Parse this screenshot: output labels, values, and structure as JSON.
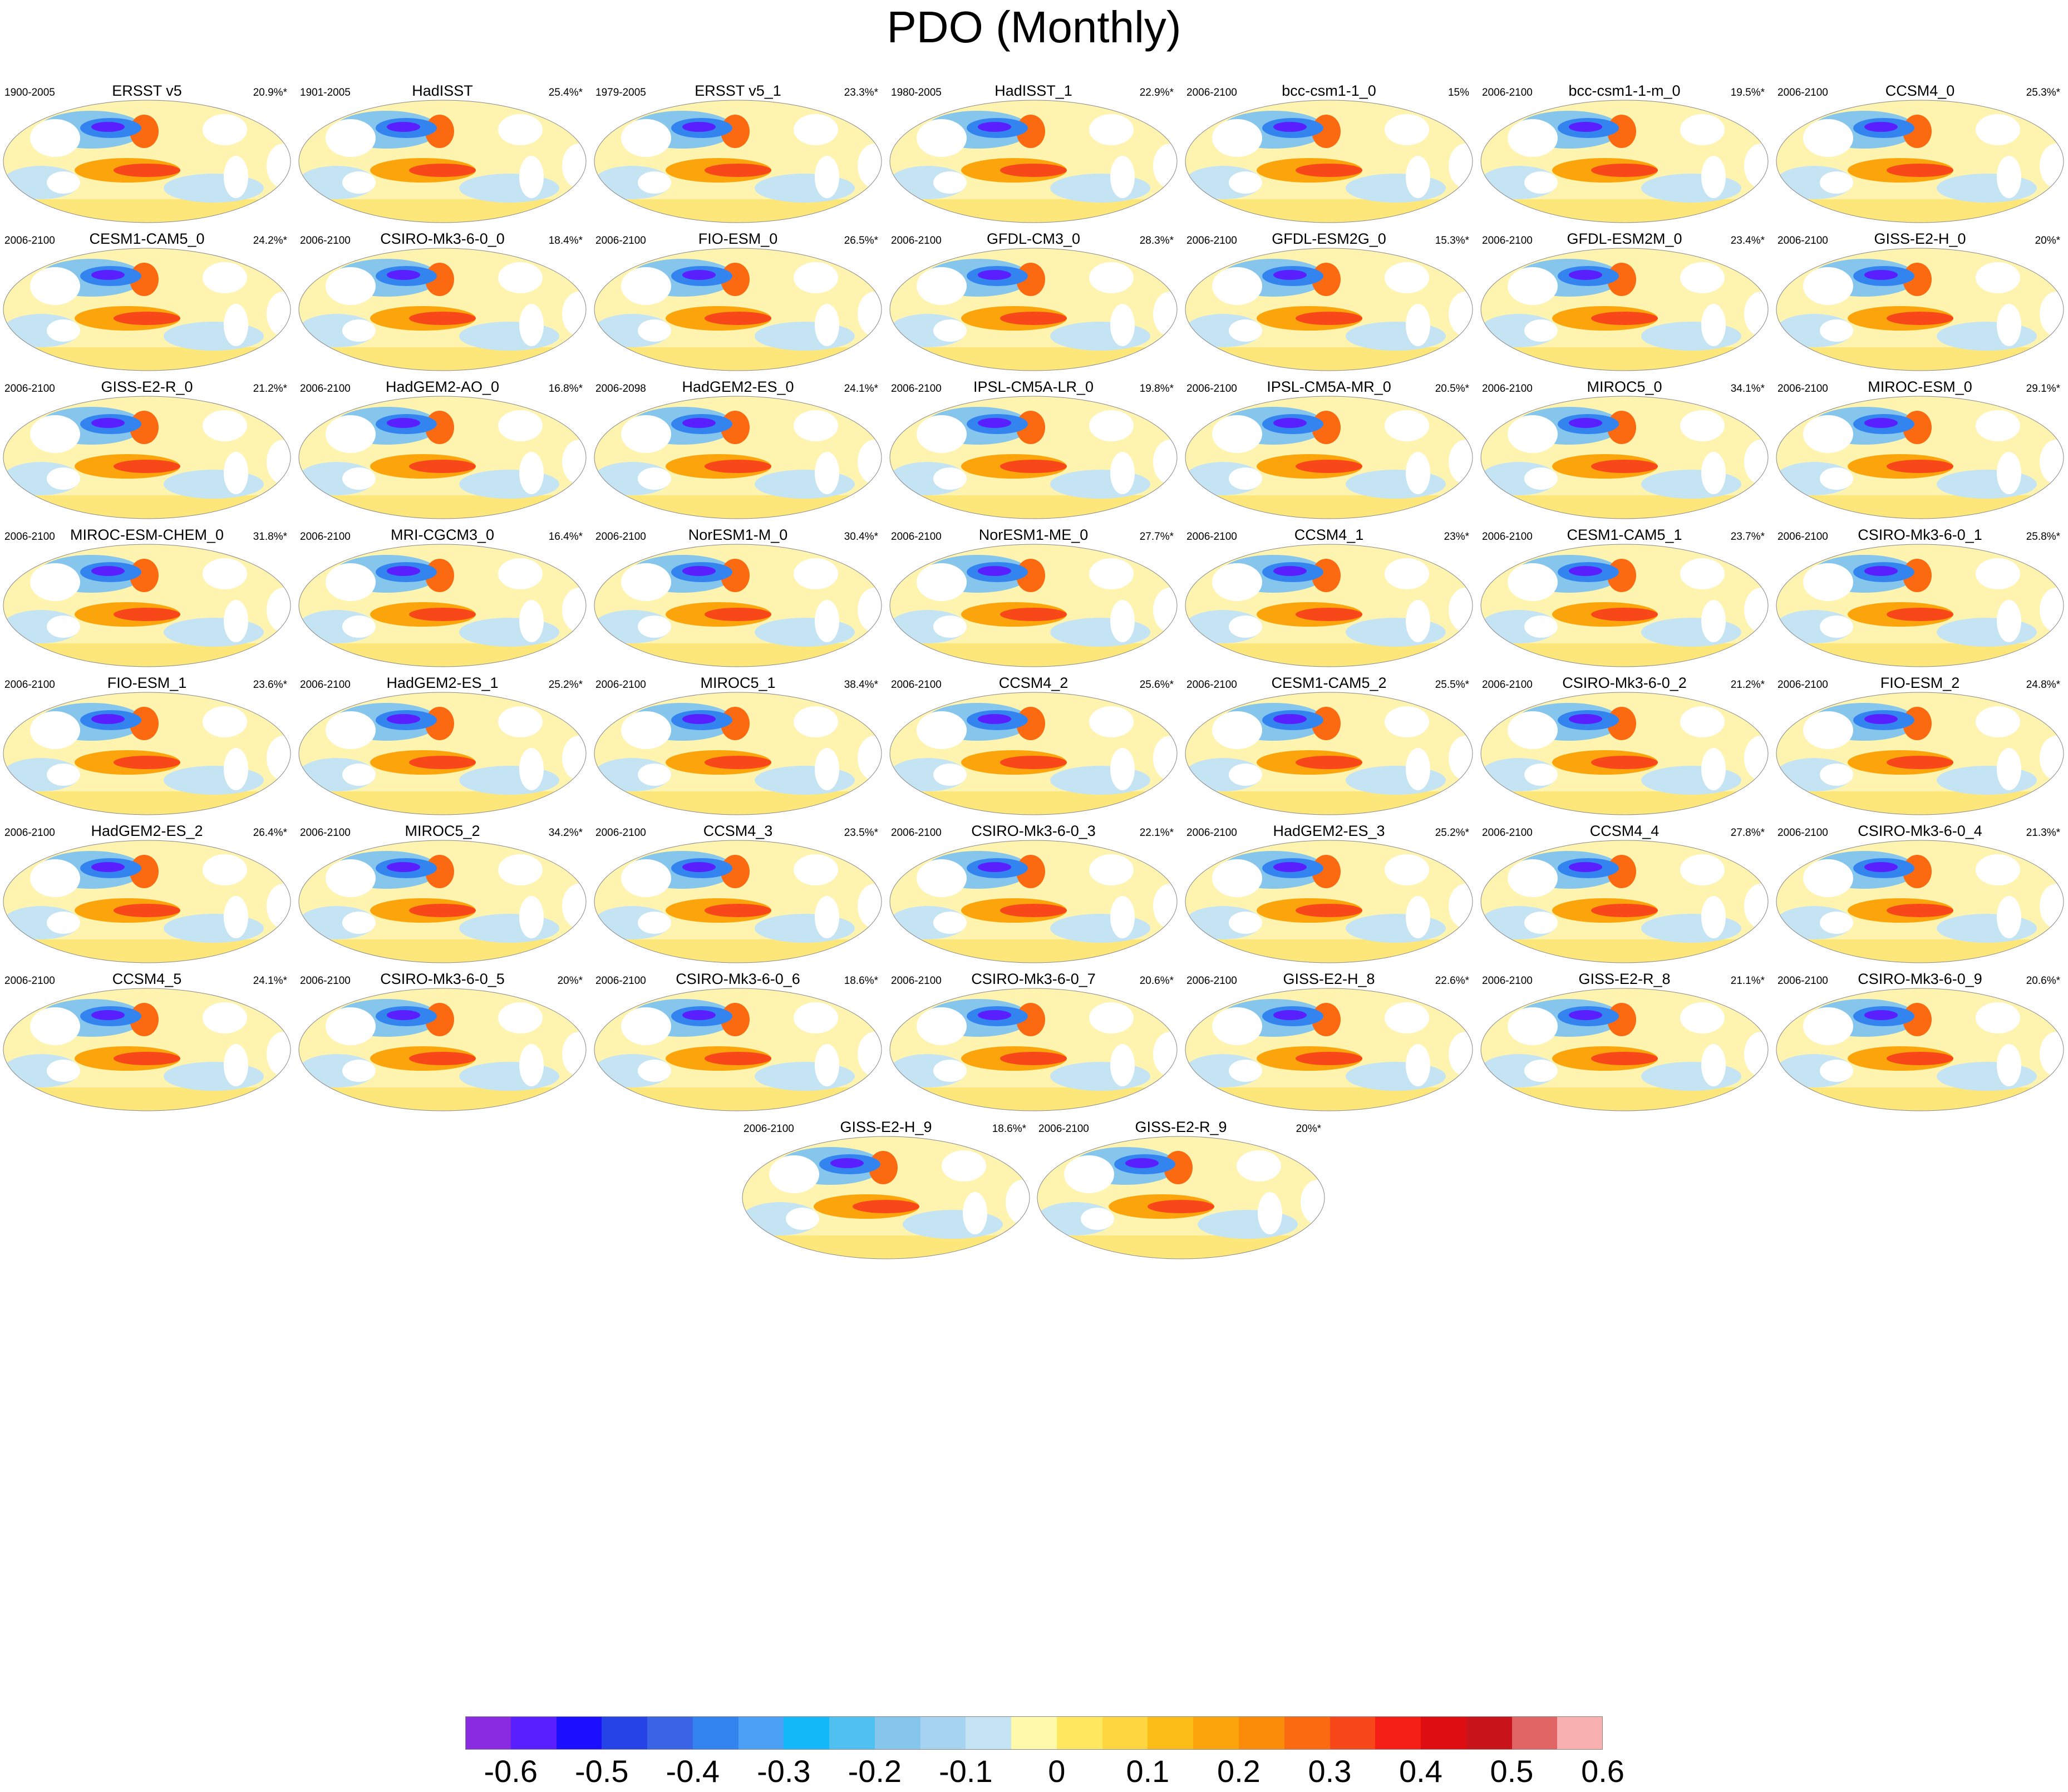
{
  "title": "PDO (Monthly)",
  "panels": [
    {
      "name": "ERSST v5",
      "period": "1900-2005",
      "pct": "20.9%*"
    },
    {
      "name": "HadISST",
      "period": "1901-2005",
      "pct": "25.4%*"
    },
    {
      "name": "ERSST v5_1",
      "period": "1979-2005",
      "pct": "23.3%*"
    },
    {
      "name": "HadISST_1",
      "period": "1980-2005",
      "pct": "22.9%*"
    },
    {
      "name": "bcc-csm1-1_0",
      "period": "2006-2100",
      "pct": "15%"
    },
    {
      "name": "bcc-csm1-1-m_0",
      "period": "2006-2100",
      "pct": "19.5%*"
    },
    {
      "name": "CCSM4_0",
      "period": "2006-2100",
      "pct": "25.3%*"
    },
    {
      "name": "CESM1-CAM5_0",
      "period": "2006-2100",
      "pct": "24.2%*"
    },
    {
      "name": "CSIRO-Mk3-6-0_0",
      "period": "2006-2100",
      "pct": "18.4%*"
    },
    {
      "name": "FIO-ESM_0",
      "period": "2006-2100",
      "pct": "26.5%*"
    },
    {
      "name": "GFDL-CM3_0",
      "period": "2006-2100",
      "pct": "28.3%*"
    },
    {
      "name": "GFDL-ESM2G_0",
      "period": "2006-2100",
      "pct": "15.3%*"
    },
    {
      "name": "GFDL-ESM2M_0",
      "period": "2006-2100",
      "pct": "23.4%*"
    },
    {
      "name": "GISS-E2-H_0",
      "period": "2006-2100",
      "pct": "20%*"
    },
    {
      "name": "GISS-E2-R_0",
      "period": "2006-2100",
      "pct": "21.2%*"
    },
    {
      "name": "HadGEM2-AO_0",
      "period": "2006-2100",
      "pct": "16.8%*"
    },
    {
      "name": "HadGEM2-ES_0",
      "period": "2006-2098",
      "pct": "24.1%*"
    },
    {
      "name": "IPSL-CM5A-LR_0",
      "period": "2006-2100",
      "pct": "19.8%*"
    },
    {
      "name": "IPSL-CM5A-MR_0",
      "period": "2006-2100",
      "pct": "20.5%*"
    },
    {
      "name": "MIROC5_0",
      "period": "2006-2100",
      "pct": "34.1%*"
    },
    {
      "name": "MIROC-ESM_0",
      "period": "2006-2100",
      "pct": "29.1%*"
    },
    {
      "name": "MIROC-ESM-CHEM_0",
      "period": "2006-2100",
      "pct": "31.8%*"
    },
    {
      "name": "MRI-CGCM3_0",
      "period": "2006-2100",
      "pct": "16.4%*"
    },
    {
      "name": "NorESM1-M_0",
      "period": "2006-2100",
      "pct": "30.4%*"
    },
    {
      "name": "NorESM1-ME_0",
      "period": "2006-2100",
      "pct": "27.7%*"
    },
    {
      "name": "CCSM4_1",
      "period": "2006-2100",
      "pct": "23%*"
    },
    {
      "name": "CESM1-CAM5_1",
      "period": "2006-2100",
      "pct": "23.7%*"
    },
    {
      "name": "CSIRO-Mk3-6-0_1",
      "period": "2006-2100",
      "pct": "25.8%*"
    },
    {
      "name": "FIO-ESM_1",
      "period": "2006-2100",
      "pct": "23.6%*"
    },
    {
      "name": "HadGEM2-ES_1",
      "period": "2006-2100",
      "pct": "25.2%*"
    },
    {
      "name": "MIROC5_1",
      "period": "2006-2100",
      "pct": "38.4%*"
    },
    {
      "name": "CCSM4_2",
      "period": "2006-2100",
      "pct": "25.6%*"
    },
    {
      "name": "CESM1-CAM5_2",
      "period": "2006-2100",
      "pct": "25.5%*"
    },
    {
      "name": "CSIRO-Mk3-6-0_2",
      "period": "2006-2100",
      "pct": "21.2%*"
    },
    {
      "name": "FIO-ESM_2",
      "period": "2006-2100",
      "pct": "24.8%*"
    },
    {
      "name": "HadGEM2-ES_2",
      "period": "2006-2100",
      "pct": "26.4%*"
    },
    {
      "name": "MIROC5_2",
      "period": "2006-2100",
      "pct": "34.2%*"
    },
    {
      "name": "CCSM4_3",
      "period": "2006-2100",
      "pct": "23.5%*"
    },
    {
      "name": "CSIRO-Mk3-6-0_3",
      "period": "2006-2100",
      "pct": "22.1%*"
    },
    {
      "name": "HadGEM2-ES_3",
      "period": "2006-2100",
      "pct": "25.2%*"
    },
    {
      "name": "CCSM4_4",
      "period": "2006-2100",
      "pct": "27.8%*"
    },
    {
      "name": "CSIRO-Mk3-6-0_4",
      "period": "2006-2100",
      "pct": "21.3%*"
    },
    {
      "name": "CCSM4_5",
      "period": "2006-2100",
      "pct": "24.1%*"
    },
    {
      "name": "CSIRO-Mk3-6-0_5",
      "period": "2006-2100",
      "pct": "20%*"
    },
    {
      "name": "CSIRO-Mk3-6-0_6",
      "period": "2006-2100",
      "pct": "18.6%*"
    },
    {
      "name": "CSIRO-Mk3-6-0_7",
      "period": "2006-2100",
      "pct": "20.6%*"
    },
    {
      "name": "GISS-E2-H_8",
      "period": "2006-2100",
      "pct": "22.6%*"
    },
    {
      "name": "GISS-E2-R_8",
      "period": "2006-2100",
      "pct": "21.1%*"
    },
    {
      "name": "CSIRO-Mk3-6-0_9",
      "period": "2006-2100",
      "pct": "20.6%*"
    },
    {
      "name": "GISS-E2-H_9",
      "period": "2006-2100",
      "pct": "18.6%*"
    },
    {
      "name": "GISS-E2-R_9",
      "period": "2006-2100",
      "pct": "20%*"
    }
  ],
  "colorbar": {
    "colors": [
      "#8a2be2",
      "#5a1fff",
      "#1a0fff",
      "#2444e8",
      "#3a64e6",
      "#3484f0",
      "#4aa0f4",
      "#12b8f8",
      "#50c0f0",
      "#86c6ec",
      "#a6d4f0",
      "#c4e4f4",
      "#fffaaa",
      "#ffe860",
      "#fed640",
      "#fbbc18",
      "#fba40c",
      "#fb8c0a",
      "#fb6a10",
      "#f8481a",
      "#f41e14",
      "#de0d12",
      "#c8141a",
      "#e06464",
      "#f8b0b0"
    ],
    "tick_labels": [
      "-0.6",
      "-0.5",
      "-0.4",
      "-0.3",
      "-0.2",
      "-0.1",
      "0",
      "0.1",
      "0.2",
      "0.3",
      "0.4",
      "0.5",
      "0.6"
    ]
  }
}
